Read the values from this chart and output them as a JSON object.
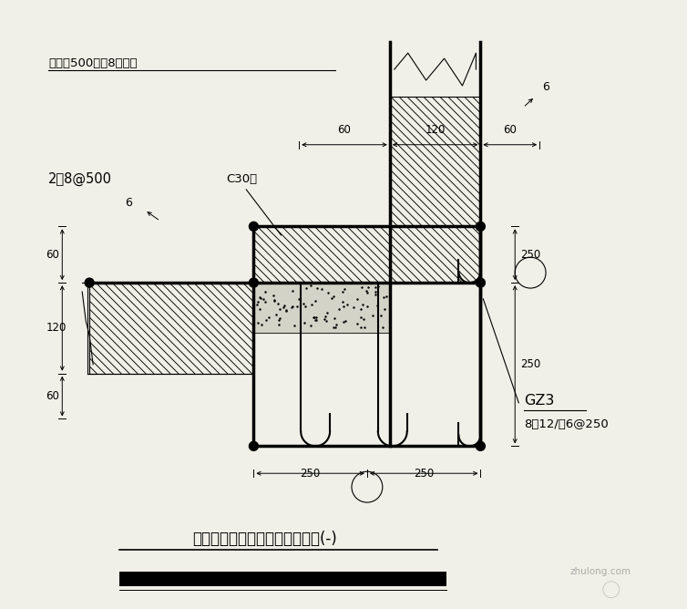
{
  "bg_color": "#f0f0e8",
  "line_color": "#000000",
  "title_text": "外围护墙与钉柱转角处连接做法(-)",
  "annotation1": "浇高度500设？8拉结筋",
  "annotation2": "C30纤",
  "annotation3": "2？8@500",
  "annotation4": "GZ3",
  "annotation5": "8？12/？6@250",
  "watermark": "zhulong.com",
  "d60": "60",
  "d120": "120",
  "d250": "250",
  "d6": "6"
}
